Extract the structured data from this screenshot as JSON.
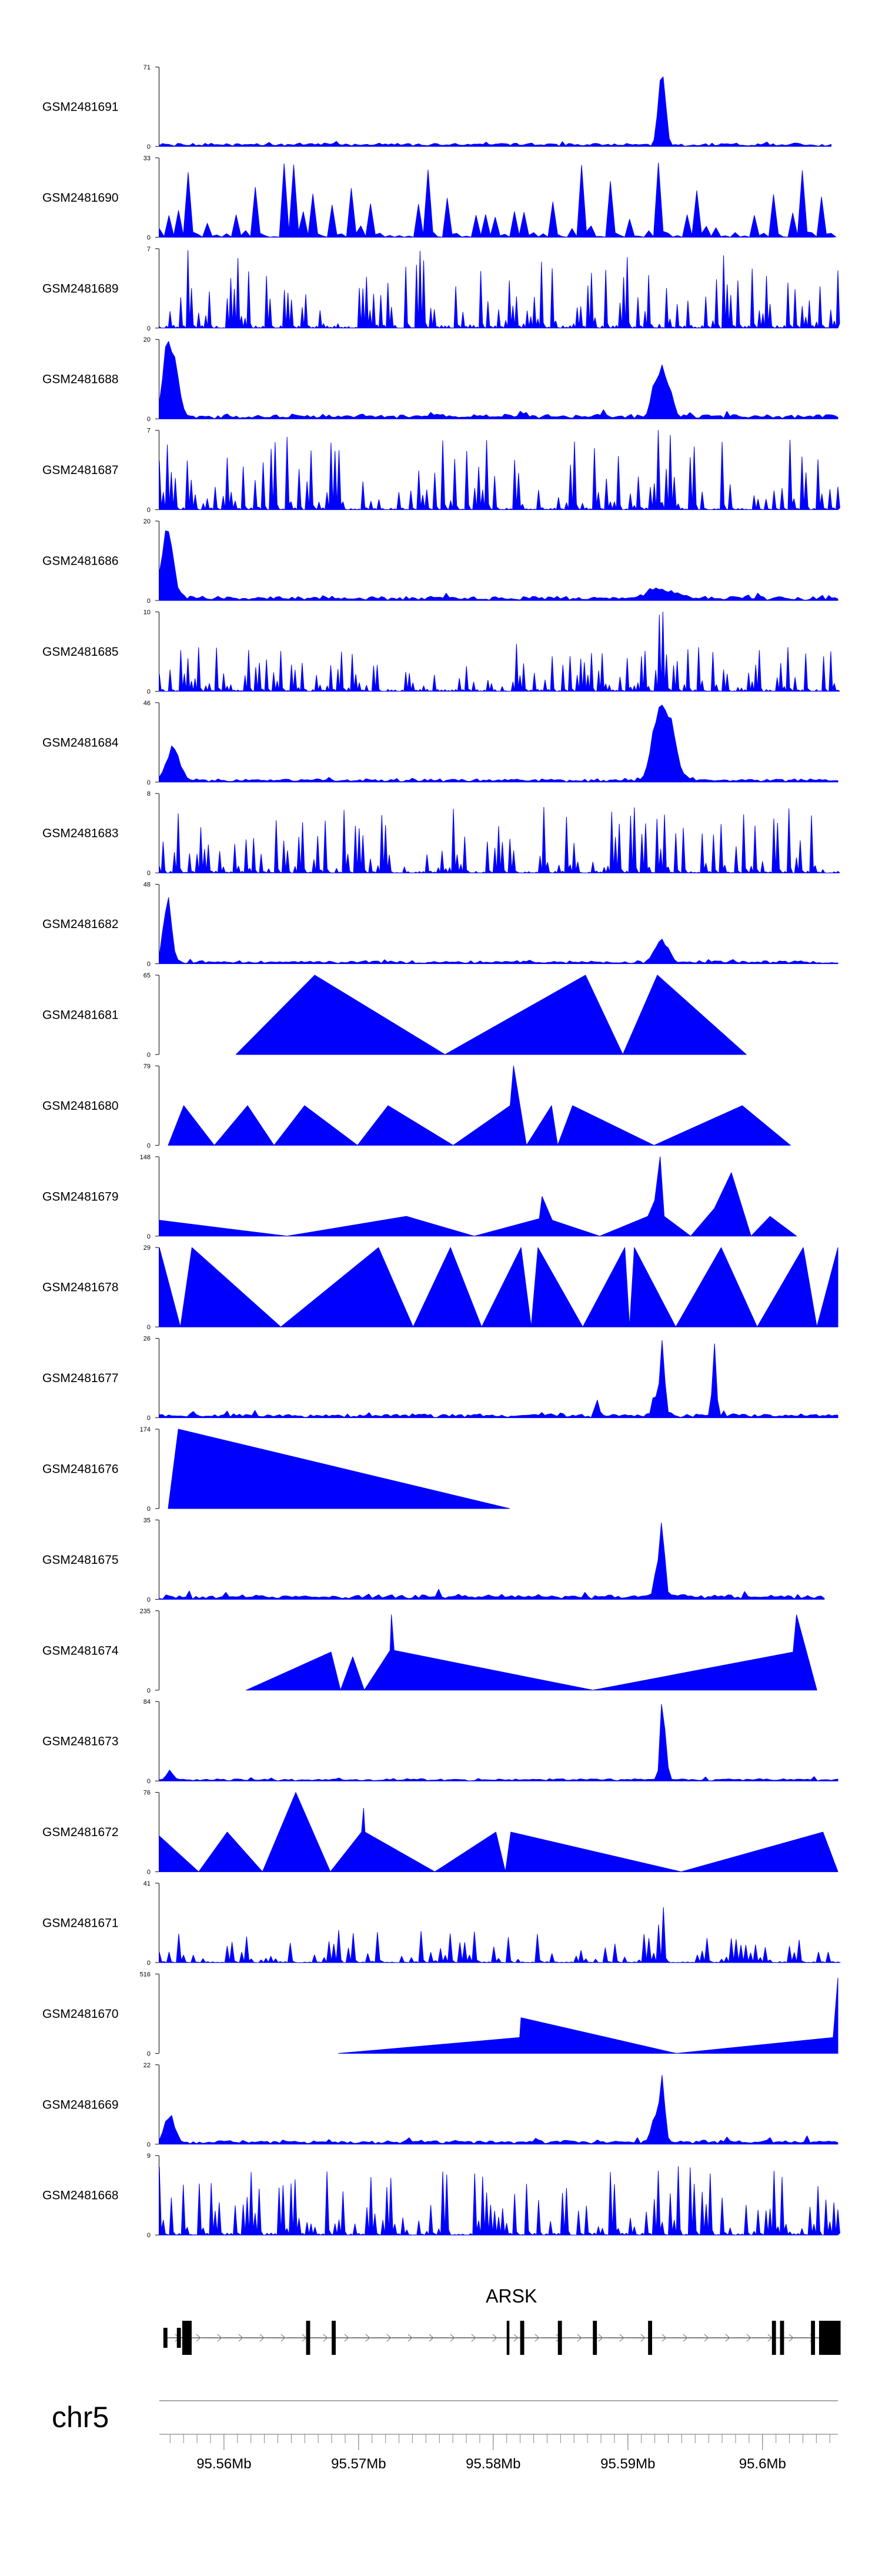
{
  "chart_data": {
    "type": "area",
    "title": "",
    "chromosome": "chr5",
    "gene": {
      "name": "ARSK",
      "strand": "+",
      "start": 95555500,
      "end": 95605800,
      "exons": [
        [
          95555500,
          95555800
        ],
        [
          95556500,
          95556800
        ],
        [
          95556900,
          95557600
        ],
        [
          95566100,
          95566400
        ],
        [
          95568000,
          95568300
        ],
        [
          95581000,
          95581200
        ],
        [
          95582000,
          95582300
        ],
        [
          95584800,
          95585100
        ],
        [
          95587400,
          95587700
        ],
        [
          95591500,
          95591800
        ],
        [
          95600700,
          95601000
        ],
        [
          95601300,
          95601600
        ],
        [
          95603600,
          95603900
        ],
        [
          95604200,
          95605800
        ]
      ],
      "utr": [
        [
          95555500,
          95556800
        ]
      ]
    },
    "xlim": [
      95555200,
      95605600
    ],
    "x_ticks": [
      {
        "pos": 95560000,
        "label": "95.56Mb"
      },
      {
        "pos": 95570000,
        "label": "95.57Mb"
      },
      {
        "pos": 95580000,
        "label": "95.58Mb"
      },
      {
        "pos": 95590000,
        "label": "95.59Mb"
      },
      {
        "pos": 95600000,
        "label": "95.6Mb"
      }
    ],
    "minor_tick_step": 1000,
    "series": [
      {
        "name": "GSM2481691",
        "ymax": 71,
        "ymin_label": "0",
        "ymax_label": "71",
        "style": "noisy",
        "noise": {
          "bins": 220,
          "base": 0.03,
          "amp": 0.05,
          "start": 0.0,
          "end": 0.99,
          "seed": 11
        },
        "peaks": [
          {
            "x": 0.742,
            "h": 1.0,
            "w": 0.006
          },
          {
            "x": 0.735,
            "h": 0.28,
            "w": 0.005
          }
        ]
      },
      {
        "name": "GSM2481690",
        "ymax": 33,
        "ymin_label": "0",
        "ymax_label": "33",
        "style": "spiky",
        "noise": {
          "bins": 70,
          "base": 0.25,
          "amp": 0.85,
          "start": 0.0,
          "end": 0.99,
          "seed": 21
        },
        "peaks": [
          {
            "x": 0.735,
            "h": 0.97,
            "w": 0.004
          }
        ]
      },
      {
        "name": "GSM2481689",
        "ymax": 7,
        "ymin_label": "0",
        "ymax_label": "7",
        "style": "spiky",
        "noise": {
          "bins": 190,
          "base": 0.15,
          "amp": 0.85,
          "start": 0.0,
          "end": 1.0,
          "seed": 31
        },
        "peaks": []
      },
      {
        "name": "GSM2481688",
        "ymax": 20,
        "ymin_label": "0",
        "ymax_label": "20",
        "style": "noisy",
        "noise": {
          "bins": 220,
          "base": 0.04,
          "amp": 0.08,
          "start": 0.0,
          "end": 1.0,
          "seed": 41
        },
        "peaks": [
          {
            "x": 0.012,
            "h": 0.95,
            "w": 0.01
          },
          {
            "x": 0.025,
            "h": 0.55,
            "w": 0.008
          },
          {
            "x": 0.745,
            "h": 0.62,
            "w": 0.012
          },
          {
            "x": 0.73,
            "h": 0.38,
            "w": 0.008
          }
        ]
      },
      {
        "name": "GSM2481687",
        "ymax": 7,
        "ymin_label": "0",
        "ymax_label": "7",
        "style": "spiky",
        "noise": {
          "bins": 170,
          "base": 0.1,
          "amp": 0.85,
          "start": 0.0,
          "end": 1.0,
          "seed": 51
        },
        "peaks": [
          {
            "x": 0.735,
            "h": 1.0,
            "w": 0.003
          }
        ]
      },
      {
        "name": "GSM2481686",
        "ymax": 20,
        "ymin_label": "0",
        "ymax_label": "20",
        "style": "noisy",
        "noise": {
          "bins": 220,
          "base": 0.04,
          "amp": 0.07,
          "start": 0.0,
          "end": 1.0,
          "seed": 61
        },
        "peaks": [
          {
            "x": 0.012,
            "h": 0.92,
            "w": 0.012
          },
          {
            "x": 0.74,
            "h": 0.13,
            "w": 0.03
          }
        ]
      },
      {
        "name": "GSM2481685",
        "ymax": 10,
        "ymin_label": "0",
        "ymax_label": "10",
        "style": "spiky",
        "noise": {
          "bins": 190,
          "base": 0.1,
          "amp": 0.55,
          "start": 0.0,
          "end": 1.0,
          "seed": 71
        },
        "peaks": [
          {
            "x": 0.737,
            "h": 0.95,
            "w": 0.004
          },
          {
            "x": 0.745,
            "h": 0.7,
            "w": 0.004
          }
        ]
      },
      {
        "name": "GSM2481684",
        "ymax": 46,
        "ymin_label": "0",
        "ymax_label": "46",
        "style": "noisy",
        "noise": {
          "bins": 220,
          "base": 0.03,
          "amp": 0.05,
          "start": 0.0,
          "end": 1.0,
          "seed": 81
        },
        "peaks": [
          {
            "x": 0.02,
            "h": 0.45,
            "w": 0.014
          },
          {
            "x": 0.735,
            "h": 0.82,
            "w": 0.014
          },
          {
            "x": 0.752,
            "h": 0.75,
            "w": 0.014
          }
        ]
      },
      {
        "name": "GSM2481683",
        "ymax": 8,
        "ymin_label": "0",
        "ymax_label": "8",
        "style": "spiky",
        "noise": {
          "bins": 180,
          "base": 0.1,
          "amp": 0.75,
          "start": 0.0,
          "end": 1.0,
          "seed": 91
        },
        "peaks": []
      },
      {
        "name": "GSM2481682",
        "ymax": 48,
        "ymin_label": "0",
        "ymax_label": "48",
        "style": "noisy",
        "noise": {
          "bins": 220,
          "base": 0.03,
          "amp": 0.04,
          "start": 0.0,
          "end": 1.0,
          "seed": 101
        },
        "peaks": [
          {
            "x": 0.012,
            "h": 0.95,
            "w": 0.008
          },
          {
            "x": 0.74,
            "h": 0.35,
            "w": 0.012
          }
        ]
      },
      {
        "name": "GSM2481681",
        "ymax": 65,
        "ymin_label": "0",
        "ymax_label": "65",
        "style": "polygon",
        "points": [
          [
            0.113,
            0
          ],
          [
            0.229,
            1.0
          ],
          [
            0.421,
            0
          ],
          [
            0.628,
            1.0
          ],
          [
            0.683,
            0
          ],
          [
            0.734,
            1.0
          ],
          [
            0.865,
            0
          ]
        ]
      },
      {
        "name": "GSM2481680",
        "ymax": 79,
        "ymin_label": "0",
        "ymax_label": "79",
        "style": "polygon",
        "points": [
          [
            0.013,
            0
          ],
          [
            0.036,
            0.5
          ],
          [
            0.081,
            0
          ],
          [
            0.13,
            0.5
          ],
          [
            0.169,
            0
          ],
          [
            0.214,
            0.5
          ],
          [
            0.292,
            0
          ],
          [
            0.337,
            0.5
          ],
          [
            0.433,
            0
          ],
          [
            0.517,
            0.5
          ],
          [
            0.522,
            1.0
          ],
          [
            0.541,
            0
          ],
          [
            0.578,
            0.5
          ],
          [
            0.587,
            0
          ],
          [
            0.609,
            0.5
          ],
          [
            0.729,
            0
          ],
          [
            0.859,
            0.5
          ],
          [
            0.93,
            0
          ]
        ]
      },
      {
        "name": "GSM2481679",
        "ymax": 148,
        "ymin_label": "0",
        "ymax_label": "148",
        "style": "polygon",
        "points": [
          [
            0.0,
            0.2
          ],
          [
            0.0,
            0.2
          ],
          [
            0.188,
            0
          ],
          [
            0.364,
            0.25
          ],
          [
            0.464,
            0
          ],
          [
            0.56,
            0.22
          ],
          [
            0.564,
            0.5
          ],
          [
            0.579,
            0.2
          ],
          [
            0.649,
            0
          ],
          [
            0.72,
            0.25
          ],
          [
            0.73,
            0.45
          ],
          [
            0.738,
            1.0
          ],
          [
            0.744,
            0.25
          ],
          [
            0.783,
            0
          ],
          [
            0.818,
            0.35
          ],
          [
            0.843,
            0.8
          ],
          [
            0.872,
            0
          ],
          [
            0.9,
            0.25
          ],
          [
            0.939,
            0
          ]
        ]
      },
      {
        "name": "GSM2481678",
        "ymax": 29,
        "ymin_label": "0",
        "ymax_label": "29",
        "style": "polygon",
        "points": [
          [
            0.0,
            0
          ],
          [
            0.0,
            1.0
          ],
          [
            0.031,
            0
          ],
          [
            0.048,
            1.0
          ],
          [
            0.179,
            0
          ],
          [
            0.323,
            1.0
          ],
          [
            0.374,
            0
          ],
          [
            0.429,
            1.0
          ],
          [
            0.475,
            0
          ],
          [
            0.533,
            1.0
          ],
          [
            0.548,
            0
          ],
          [
            0.558,
            1.0
          ],
          [
            0.624,
            0
          ],
          [
            0.686,
            1.0
          ],
          [
            0.693,
            0
          ],
          [
            0.7,
            1.0
          ],
          [
            0.761,
            0
          ],
          [
            0.828,
            1.0
          ],
          [
            0.881,
            0
          ],
          [
            0.949,
            1.0
          ],
          [
            0.969,
            0
          ],
          [
            1.0,
            1.0
          ],
          [
            1.0,
            0
          ]
        ]
      },
      {
        "name": "GSM2481677",
        "ymax": 26,
        "ymin_label": "0",
        "ymax_label": "26",
        "style": "noisy",
        "noise": {
          "bins": 220,
          "base": 0.03,
          "amp": 0.08,
          "start": 0.0,
          "end": 1.0,
          "seed": 141
        },
        "peaks": [
          {
            "x": 0.741,
            "h": 1.0,
            "w": 0.005
          },
          {
            "x": 0.818,
            "h": 0.92,
            "w": 0.004
          },
          {
            "x": 0.73,
            "h": 0.35,
            "w": 0.004
          },
          {
            "x": 0.645,
            "h": 0.22,
            "w": 0.004
          }
        ]
      },
      {
        "name": "GSM2481676",
        "ymax": 174,
        "ymin_label": "0",
        "ymax_label": "174",
        "style": "polygon",
        "points": [
          [
            0.013,
            0
          ],
          [
            0.028,
            1.0
          ],
          [
            0.516,
            0
          ]
        ]
      },
      {
        "name": "GSM2481675",
        "ymax": 35,
        "ymin_label": "0",
        "ymax_label": "35",
        "style": "noisy",
        "noise": {
          "bins": 200,
          "base": 0.03,
          "amp": 0.12,
          "start": 0.0,
          "end": 0.98,
          "seed": 161
        },
        "peaks": [
          {
            "x": 0.741,
            "h": 0.95,
            "w": 0.006
          },
          {
            "x": 0.732,
            "h": 0.3,
            "w": 0.005
          }
        ]
      },
      {
        "name": "GSM2481674",
        "ymax": 235,
        "ymin_label": "0",
        "ymax_label": "235",
        "style": "polygon",
        "points": [
          [
            0.128,
            0
          ],
          [
            0.253,
            0.48
          ],
          [
            0.267,
            0
          ],
          [
            0.285,
            0.42
          ],
          [
            0.302,
            0
          ],
          [
            0.34,
            0.5
          ],
          [
            0.342,
            0.95
          ],
          [
            0.346,
            0.5
          ],
          [
            0.639,
            0
          ],
          [
            0.934,
            0.48
          ],
          [
            0.939,
            0.95
          ],
          [
            0.969,
            0
          ]
        ]
      },
      {
        "name": "GSM2481673",
        "ymax": 84,
        "ymin_label": "0",
        "ymax_label": "84",
        "style": "noisy",
        "noise": {
          "bins": 200,
          "base": 0.02,
          "amp": 0.04,
          "start": 0.0,
          "end": 1.0,
          "seed": 181
        },
        "peaks": [
          {
            "x": 0.741,
            "h": 1.0,
            "w": 0.004
          },
          {
            "x": 0.746,
            "h": 0.45,
            "w": 0.004
          },
          {
            "x": 0.015,
            "h": 0.15,
            "w": 0.006
          }
        ]
      },
      {
        "name": "GSM2481672",
        "ymax": 76,
        "ymin_label": "0",
        "ymax_label": "76",
        "style": "polygon",
        "points": [
          [
            0.0,
            0.0
          ],
          [
            0.0,
            0.45
          ],
          [
            0.058,
            0
          ],
          [
            0.1,
            0.5
          ],
          [
            0.152,
            0
          ],
          [
            0.201,
            1.0
          ],
          [
            0.252,
            0
          ],
          [
            0.298,
            0.5
          ],
          [
            0.301,
            0.8
          ],
          [
            0.303,
            0.5
          ],
          [
            0.406,
            0
          ],
          [
            0.496,
            0.5
          ],
          [
            0.51,
            0
          ],
          [
            0.518,
            0.5
          ],
          [
            0.769,
            0
          ],
          [
            0.978,
            0.5
          ],
          [
            1.0,
            0
          ]
        ]
      },
      {
        "name": "GSM2481671",
        "ymax": 41,
        "ymin_label": "0",
        "ymax_label": "41",
        "style": "spiky",
        "noise": {
          "bins": 140,
          "base": 0.05,
          "amp": 0.38,
          "start": 0.0,
          "end": 1.0,
          "seed": 201
        },
        "peaks": [
          {
            "x": 0.741,
            "h": 1.0,
            "w": 0.004
          },
          {
            "x": 0.031,
            "h": 0.4,
            "w": 0.004
          }
        ]
      },
      {
        "name": "GSM2481670",
        "ymax": 516,
        "ymin_label": "0",
        "ymax_label": "516",
        "style": "polygon",
        "points": [
          [
            0.264,
            0
          ],
          [
            0.531,
            0.2
          ],
          [
            0.533,
            0.45
          ],
          [
            0.762,
            0
          ],
          [
            0.993,
            0.2
          ],
          [
            1.0,
            0.95
          ],
          [
            1.0,
            0
          ]
        ]
      },
      {
        "name": "GSM2481669",
        "ymax": 22,
        "ymin_label": "0",
        "ymax_label": "22",
        "style": "noisy",
        "noise": {
          "bins": 220,
          "base": 0.03,
          "amp": 0.09,
          "start": 0.0,
          "end": 1.0,
          "seed": 221
        },
        "peaks": [
          {
            "x": 0.741,
            "h": 0.95,
            "w": 0.005
          },
          {
            "x": 0.73,
            "h": 0.35,
            "w": 0.008
          },
          {
            "x": 0.015,
            "h": 0.4,
            "w": 0.01
          }
        ]
      },
      {
        "name": "GSM2481668",
        "ymax": 9,
        "ymin_label": "0",
        "ymax_label": "9",
        "style": "spiky",
        "noise": {
          "bins": 170,
          "base": 0.1,
          "amp": 0.85,
          "start": 0.0,
          "end": 1.0,
          "seed": 231
        },
        "peaks": []
      }
    ]
  }
}
